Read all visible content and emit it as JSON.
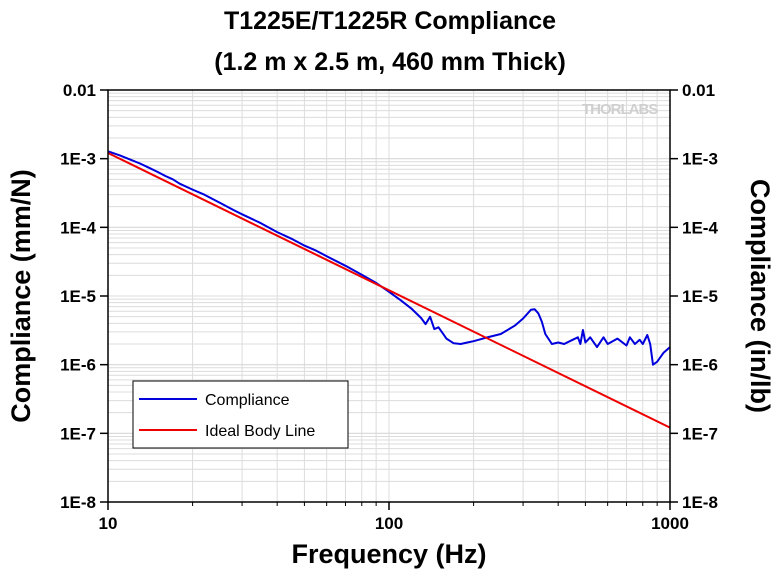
{
  "chart_data": {
    "type": "line",
    "title": "T1225E/T1225R Compliance",
    "subtitle": "(1.2 m x 2.5 m, 460 mm Thick)",
    "xlabel": "Frequency (Hz)",
    "ylabel": "Compliance (mm/N)",
    "ylabel_right": "Compliance (in/lb)",
    "xscale": "log",
    "yscale": "log",
    "xlim": [
      10,
      1000
    ],
    "ylim": [
      1e-08,
      0.01
    ],
    "x_ticks": [
      10,
      100,
      1000
    ],
    "x_tick_labels": [
      "10",
      "100",
      "1000"
    ],
    "y_ticks": [
      0.01,
      0.001,
      0.0001,
      1e-05,
      1e-06,
      1e-07,
      1e-08
    ],
    "y_tick_labels": [
      "0.01",
      "1E-3",
      "1E-4",
      "1E-5",
      "1E-6",
      "1E-7",
      "1E-8"
    ],
    "y_tick_labels_right": [
      "0.01",
      "1E-3",
      "1E-4",
      "1E-5",
      "1E-6",
      "1E-7",
      "1E-8"
    ],
    "grid": true,
    "legend_position": "bottom-left",
    "watermark": "THORLABS",
    "series": [
      {
        "name": "Compliance",
        "color": "#0000dd",
        "x": [
          10,
          11,
          12,
          13,
          14,
          15,
          16,
          17,
          18,
          20,
          22,
          25,
          28,
          30,
          35,
          40,
          45,
          50,
          55,
          60,
          70,
          80,
          90,
          100,
          110,
          120,
          130,
          135,
          140,
          145,
          150,
          155,
          160,
          170,
          180,
          190,
          200,
          220,
          250,
          280,
          300,
          320,
          330,
          340,
          350,
          360,
          380,
          400,
          420,
          450,
          470,
          480,
          490,
          500,
          520,
          550,
          580,
          600,
          650,
          700,
          720,
          750,
          780,
          800,
          830,
          850,
          870,
          900,
          950,
          1000
        ],
        "y": [
          0.00128,
          0.00112,
          0.00097,
          0.00085,
          0.000735,
          0.000642,
          0.00056,
          0.0005,
          0.000432,
          0.000355,
          0.0003,
          0.000228,
          0.000178,
          0.000155,
          0.000115,
          8.52e-05,
          6.81e-05,
          5.42e-05,
          4.58e-05,
          3.8e-05,
          2.75e-05,
          2.04e-05,
          1.55e-05,
          1.15e-05,
          8.7e-06,
          6.6e-06,
          4.8e-06,
          3.9e-06,
          5e-06,
          3.3e-06,
          3.5e-06,
          2.9e-06,
          2.4e-06,
          2.05e-06,
          2e-06,
          2.1e-06,
          2.2e-06,
          2.45e-06,
          2.8e-06,
          3.7e-06,
          4.7e-06,
          6.3e-06,
          6.4e-06,
          5.6e-06,
          4.2e-06,
          2.8e-06,
          2e-06,
          2.1e-06,
          2e-06,
          2.3e-06,
          2.5e-06,
          2e-06,
          3.2e-06,
          2.1e-06,
          2.5e-06,
          1.8e-06,
          2.5e-06,
          2e-06,
          2.4e-06,
          1.9e-06,
          2.5e-06,
          2e-06,
          2.3e-06,
          2e-06,
          2.7e-06,
          2e-06,
          1e-06,
          1.1e-06,
          1.5e-06,
          1.8e-06
        ]
      },
      {
        "name": "Ideal Body Line",
        "color": "#ee0000",
        "x": [
          10,
          1000
        ],
        "y": [
          0.00121,
          1.21e-07
        ]
      }
    ]
  }
}
